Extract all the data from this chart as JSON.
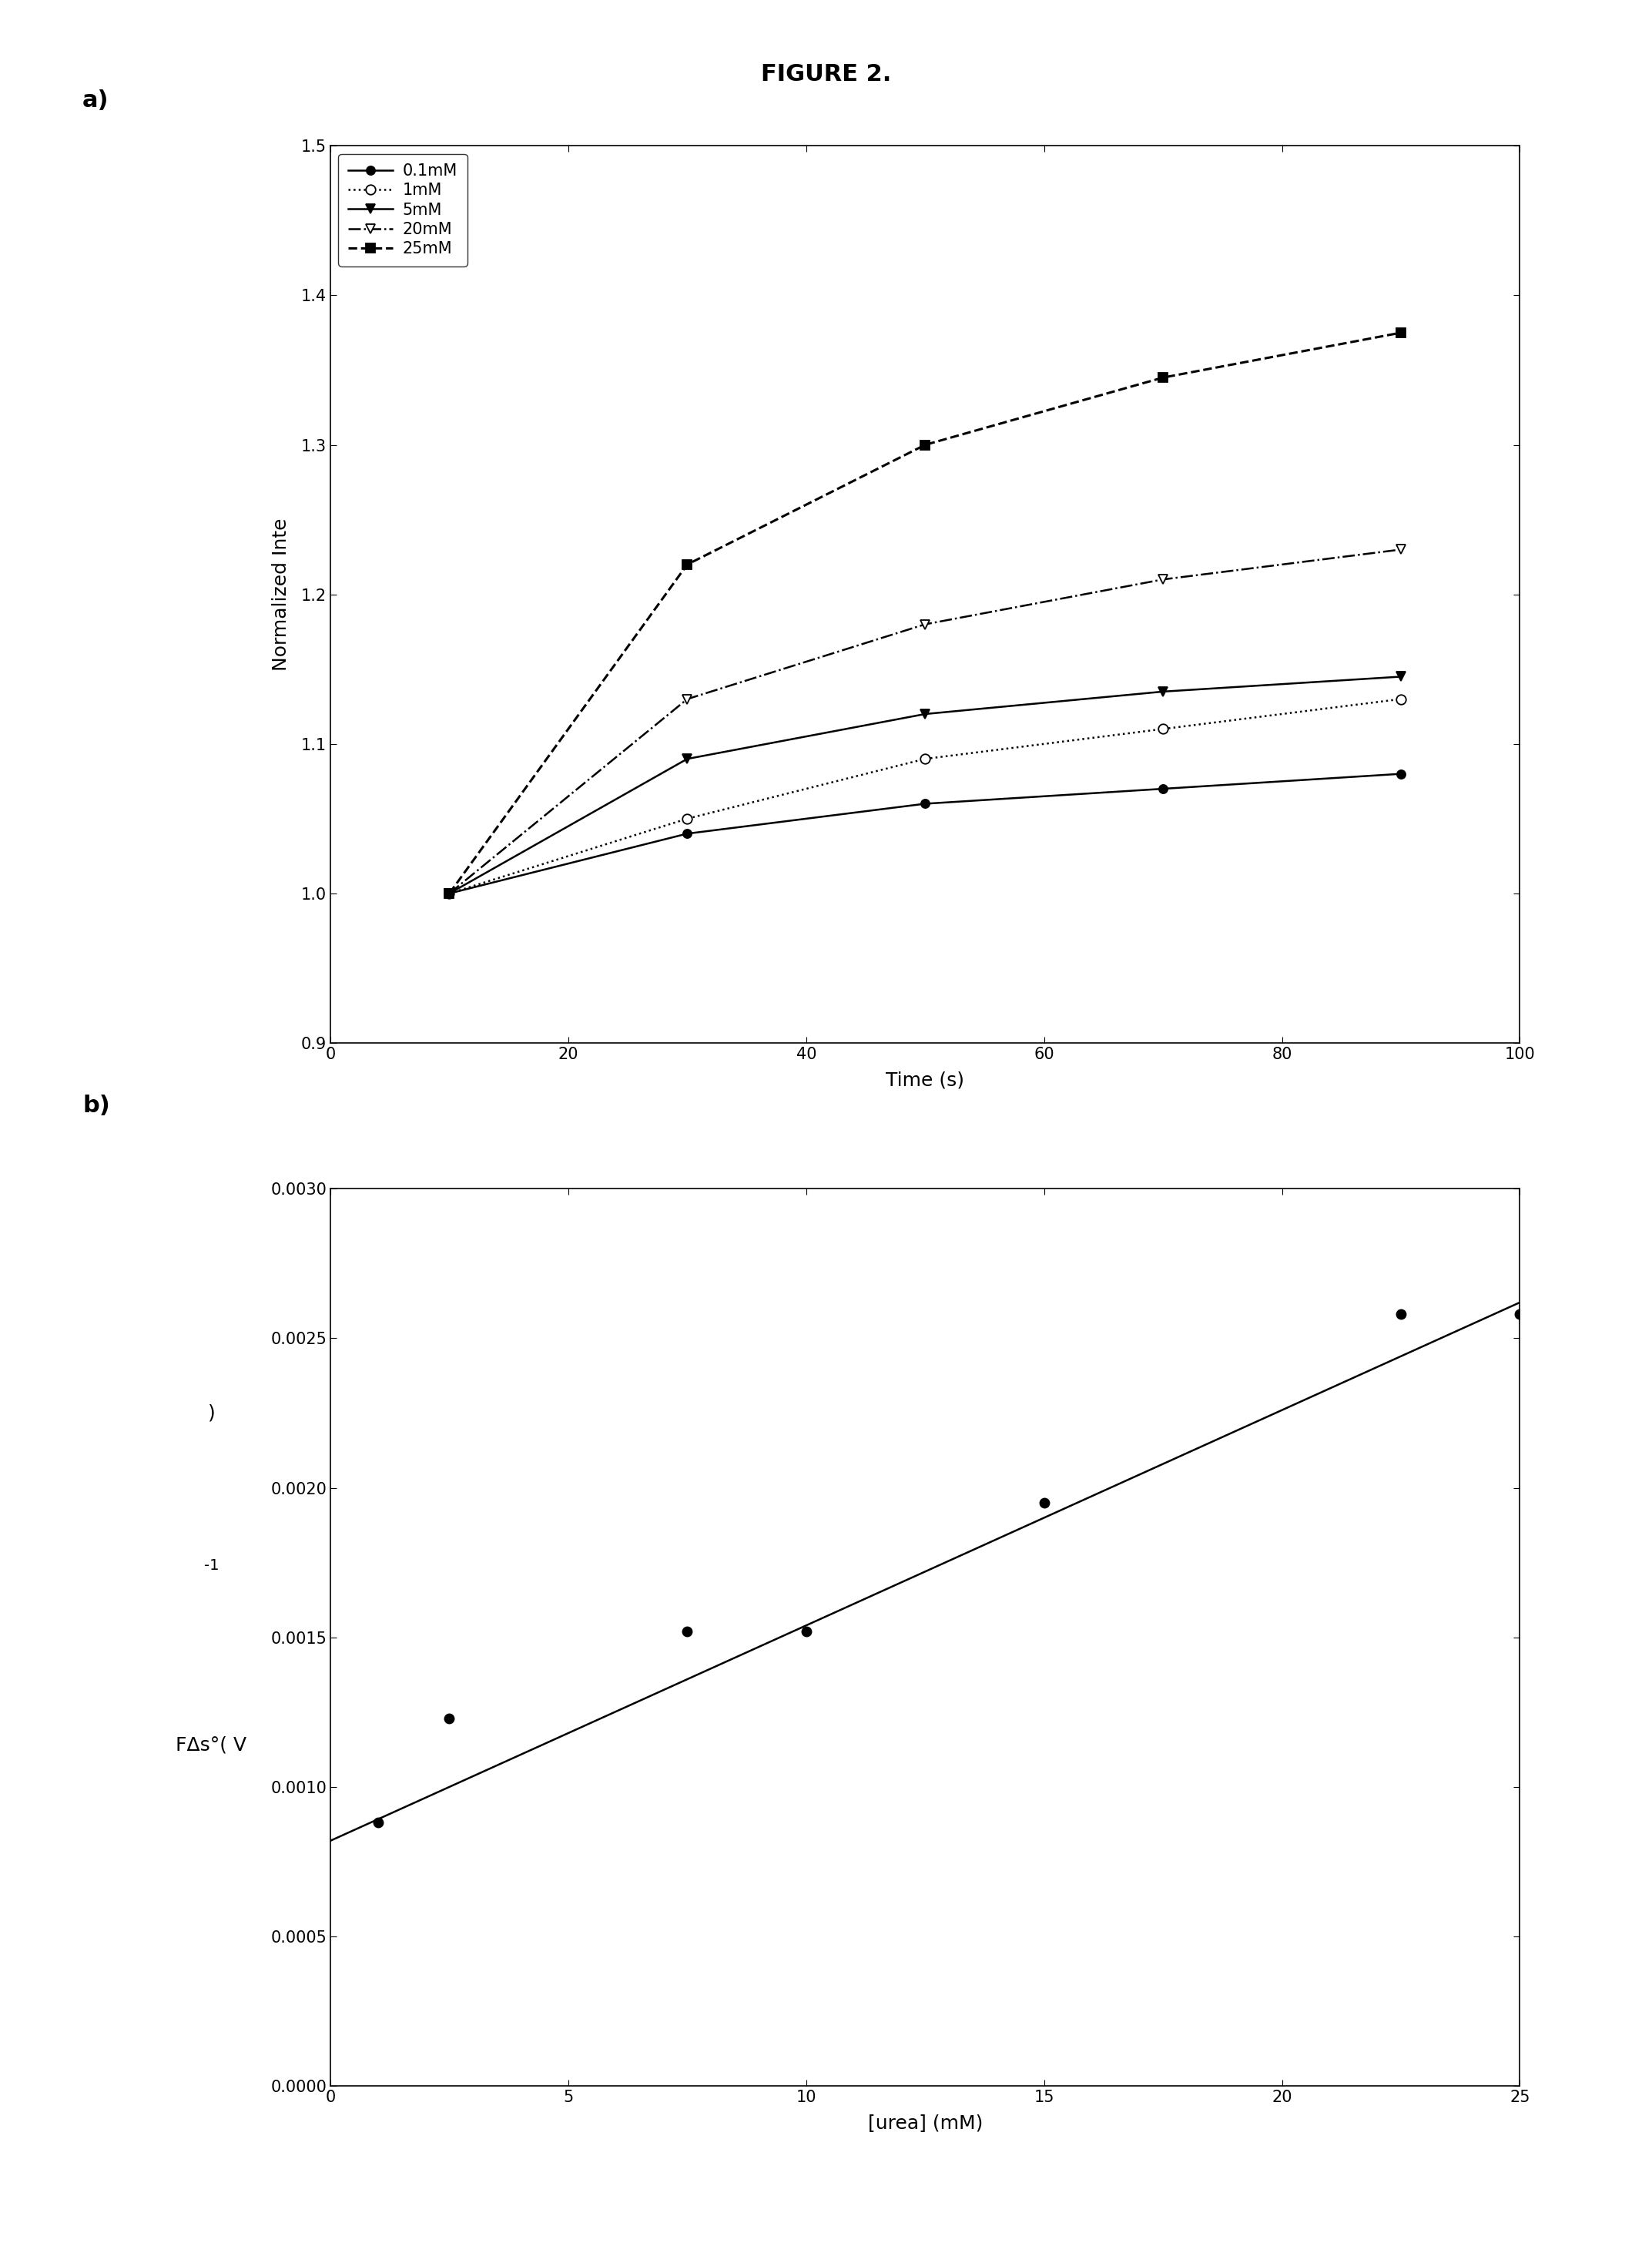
{
  "title": "FIGURE 2.",
  "panel_a": {
    "label": "a)",
    "xlabel": "Time (s)",
    "ylabel": "Normalized Inte",
    "xlim": [
      0,
      100
    ],
    "ylim": [
      0.9,
      1.5
    ],
    "xticks": [
      0,
      20,
      40,
      60,
      80,
      100
    ],
    "yticks": [
      0.9,
      1.0,
      1.1,
      1.2,
      1.3,
      1.4,
      1.5
    ],
    "series": [
      {
        "label": "0.1mM",
        "x": [
          10,
          30,
          50,
          70,
          90
        ],
        "y": [
          1.0,
          1.04,
          1.06,
          1.07,
          1.08
        ],
        "marker": "o",
        "marker_fill": "black",
        "linestyle": "-",
        "linewidth": 1.8,
        "markersize": 8
      },
      {
        "label": "1mM",
        "x": [
          10,
          30,
          50,
          70,
          90
        ],
        "y": [
          1.0,
          1.05,
          1.09,
          1.11,
          1.13
        ],
        "marker": "o",
        "marker_fill": "white",
        "linestyle": ":",
        "linewidth": 1.8,
        "markersize": 9
      },
      {
        "label": "5mM",
        "x": [
          10,
          30,
          50,
          70,
          90
        ],
        "y": [
          1.0,
          1.09,
          1.12,
          1.135,
          1.145
        ],
        "marker": "v",
        "marker_fill": "black",
        "linestyle": "-",
        "linewidth": 1.8,
        "markersize": 9
      },
      {
        "label": "20mM",
        "x": [
          10,
          30,
          50,
          70,
          90
        ],
        "y": [
          1.0,
          1.13,
          1.18,
          1.21,
          1.23
        ],
        "marker": "v",
        "marker_fill": "white",
        "linestyle": "-.",
        "linewidth": 1.8,
        "markersize": 9
      },
      {
        "label": "25mM",
        "x": [
          10,
          30,
          50,
          70,
          90
        ],
        "y": [
          1.0,
          1.22,
          1.3,
          1.345,
          1.375
        ],
        "marker": "s",
        "marker_fill": "black",
        "linestyle": "--",
        "linewidth": 2.2,
        "markersize": 9
      }
    ]
  },
  "panel_b": {
    "label": "b)",
    "xlabel": "[urea] (mM)",
    "ylabel_lines": [
      ")",
      " -1",
      "FΔs ( V"
    ],
    "xlim": [
      0,
      25
    ],
    "ylim": [
      0.0,
      0.003
    ],
    "xticks": [
      0,
      5,
      10,
      15,
      20,
      25
    ],
    "yticks": [
      0.0,
      0.0005,
      0.001,
      0.0015,
      0.002,
      0.0025,
      0.003
    ],
    "data_x": [
      1.0,
      2.5,
      7.5,
      10.0,
      15.0,
      22.5,
      25.0
    ],
    "data_y": [
      0.00088,
      0.00123,
      0.00152,
      0.00152,
      0.00195,
      0.00258,
      0.00258
    ],
    "fit_x": [
      0.0,
      25.0
    ],
    "fit_y": [
      0.00082,
      0.00262
    ],
    "markersize": 9
  }
}
